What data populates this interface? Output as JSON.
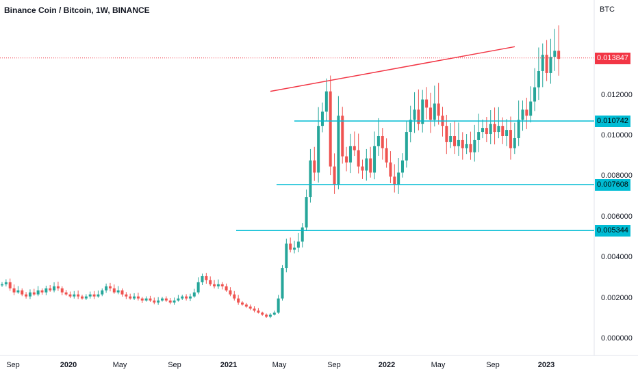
{
  "header": {
    "title": "Binance Coin / Bitcoin, 1W, BINANCE",
    "currency": "BTC"
  },
  "chart_data": {
    "type": "candlestick",
    "title": "Binance Coin / Bitcoin, 1W, BINANCE",
    "interval": "1W",
    "exchange": "BINANCE",
    "y_axis_unit": "BTC",
    "ylim": [
      -0.0003,
      0.0162
    ],
    "y_ticks": [
      "0.012000",
      "0.010000",
      "0.008000",
      "0.006000",
      "0.004000",
      "0.002000",
      "0.000000"
    ],
    "x_ticks": [
      {
        "label": "Sep",
        "bold": false
      },
      {
        "label": "2020",
        "bold": true
      },
      {
        "label": "May",
        "bold": false
      },
      {
        "label": "Sep",
        "bold": false
      },
      {
        "label": "2021",
        "bold": true
      },
      {
        "label": "May",
        "bold": false
      },
      {
        "label": "Sep",
        "bold": false
      },
      {
        "label": "2022",
        "bold": true
      },
      {
        "label": "May",
        "bold": false
      },
      {
        "label": "Sep",
        "bold": false
      },
      {
        "label": "2023",
        "bold": true
      }
    ],
    "last_price": {
      "label": "0.013847",
      "value": 0.013847
    },
    "horizontal_levels": [
      {
        "label": "0.010742",
        "value": 0.010742,
        "color": "#00bcd4"
      },
      {
        "label": "0.007608",
        "value": 0.007608,
        "color": "#00bcd4"
      },
      {
        "label": "0.005344",
        "value": 0.005344,
        "color": "#00bcd4"
      }
    ],
    "trendline": {
      "color": "#f23645",
      "start": {
        "date": "2021-05-03",
        "value": 0.0122
      },
      "end": {
        "date": "2022-10-10",
        "value": 0.0144
      }
    },
    "colors": {
      "up": "#26a69a",
      "down": "#ef5350",
      "level": "#00bcd4",
      "trend": "#f23645",
      "last_price": "#f23645"
    },
    "closes": [
      0.0027,
      0.0028,
      0.0025,
      0.0023,
      0.0024,
      0.0022,
      0.0021,
      0.0023,
      0.0022,
      0.0024,
      0.0023,
      0.0025,
      0.0024,
      0.0026,
      0.0025,
      0.0023,
      0.0022,
      0.0021,
      0.0022,
      0.0021,
      0.002,
      0.0021,
      0.0022,
      0.0021,
      0.0022,
      0.0024,
      0.0026,
      0.0025,
      0.0023,
      0.0024,
      0.0022,
      0.0021,
      0.002,
      0.0021,
      0.002,
      0.0019,
      0.002,
      0.0019,
      0.0018,
      0.0019,
      0.002,
      0.0019,
      0.0018,
      0.0019,
      0.002,
      0.0021,
      0.002,
      0.0021,
      0.0023,
      0.0028,
      0.0031,
      0.0029,
      0.0027,
      0.0026,
      0.0027,
      0.0026,
      0.0024,
      0.0022,
      0.002,
      0.0018,
      0.0017,
      0.0016,
      0.0015,
      0.0014,
      0.0013,
      0.0012,
      0.0011,
      0.0012,
      0.0013,
      0.002,
      0.0035,
      0.0047,
      0.0044,
      0.0045,
      0.0048,
      0.0055,
      0.007,
      0.0088,
      0.0082,
      0.0105,
      0.0112,
      0.0122,
      0.0085,
      0.0076,
      0.011,
      0.009,
      0.0087,
      0.0095,
      0.0093,
      0.0085,
      0.0083,
      0.0089,
      0.0082,
      0.0095,
      0.01,
      0.0094,
      0.0087,
      0.008,
      0.0076,
      0.0082,
      0.0088,
      0.0102,
      0.0108,
      0.0113,
      0.0106,
      0.0118,
      0.0114,
      0.0108,
      0.0116,
      0.011,
      0.0105,
      0.0097,
      0.01,
      0.0095,
      0.0098,
      0.0094,
      0.0096,
      0.0092,
      0.0098,
      0.0102,
      0.0104,
      0.0101,
      0.0106,
      0.0102,
      0.0105,
      0.01,
      0.0103,
      0.0094,
      0.0099,
      0.0108,
      0.0113,
      0.011,
      0.0117,
      0.0124,
      0.0132,
      0.014,
      0.0131,
      0.0139,
      0.0142,
      0.0138
    ]
  }
}
